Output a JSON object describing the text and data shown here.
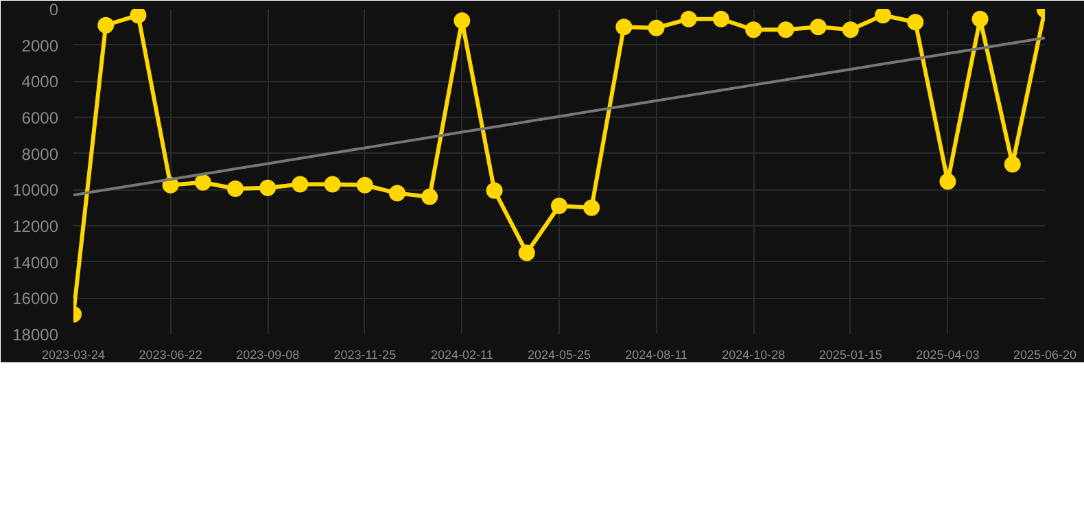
{
  "chart_data": {
    "type": "line",
    "categories": [
      "2023-03-24",
      null,
      null,
      "2023-06-22",
      null,
      null,
      "2023-09-08",
      null,
      null,
      "2023-11-25",
      null,
      null,
      "2024-02-11",
      null,
      null,
      "2024-05-25",
      null,
      null,
      "2024-08-11",
      null,
      null,
      "2024-10-28",
      null,
      null,
      "2025-01-15",
      null,
      null,
      "2025-04-03",
      null,
      null,
      "2025-06-20"
    ],
    "series": [
      {
        "color": "#ffd700",
        "marker": "circle",
        "values": [
          16900,
          900,
          350,
          9750,
          9600,
          9950,
          9900,
          9700,
          9700,
          9750,
          10200,
          10400,
          650,
          10050,
          13500,
          10900,
          11000,
          1000,
          1050,
          560,
          560,
          1150,
          1150,
          1000,
          1150,
          350,
          730,
          9550,
          560,
          8600,
          50
        ]
      },
      {
        "type": "line",
        "color": "#777777",
        "marker": "none",
        "values": [
          10300,
          10010,
          9720,
          9430,
          9140,
          8850,
          8560,
          8270,
          7980,
          7690,
          7400,
          7110,
          6820,
          6530,
          6240,
          5950,
          5660,
          5370,
          5080,
          4790,
          4500,
          4210,
          3920,
          3630,
          3340,
          3050,
          2760,
          2470,
          2180,
          1890,
          1600
        ]
      }
    ],
    "ylim": [
      18000,
      0
    ],
    "yticks": [
      0,
      2000,
      4000,
      6000,
      8000,
      10000,
      12000,
      14000,
      16000,
      18000
    ],
    "grid": true
  }
}
